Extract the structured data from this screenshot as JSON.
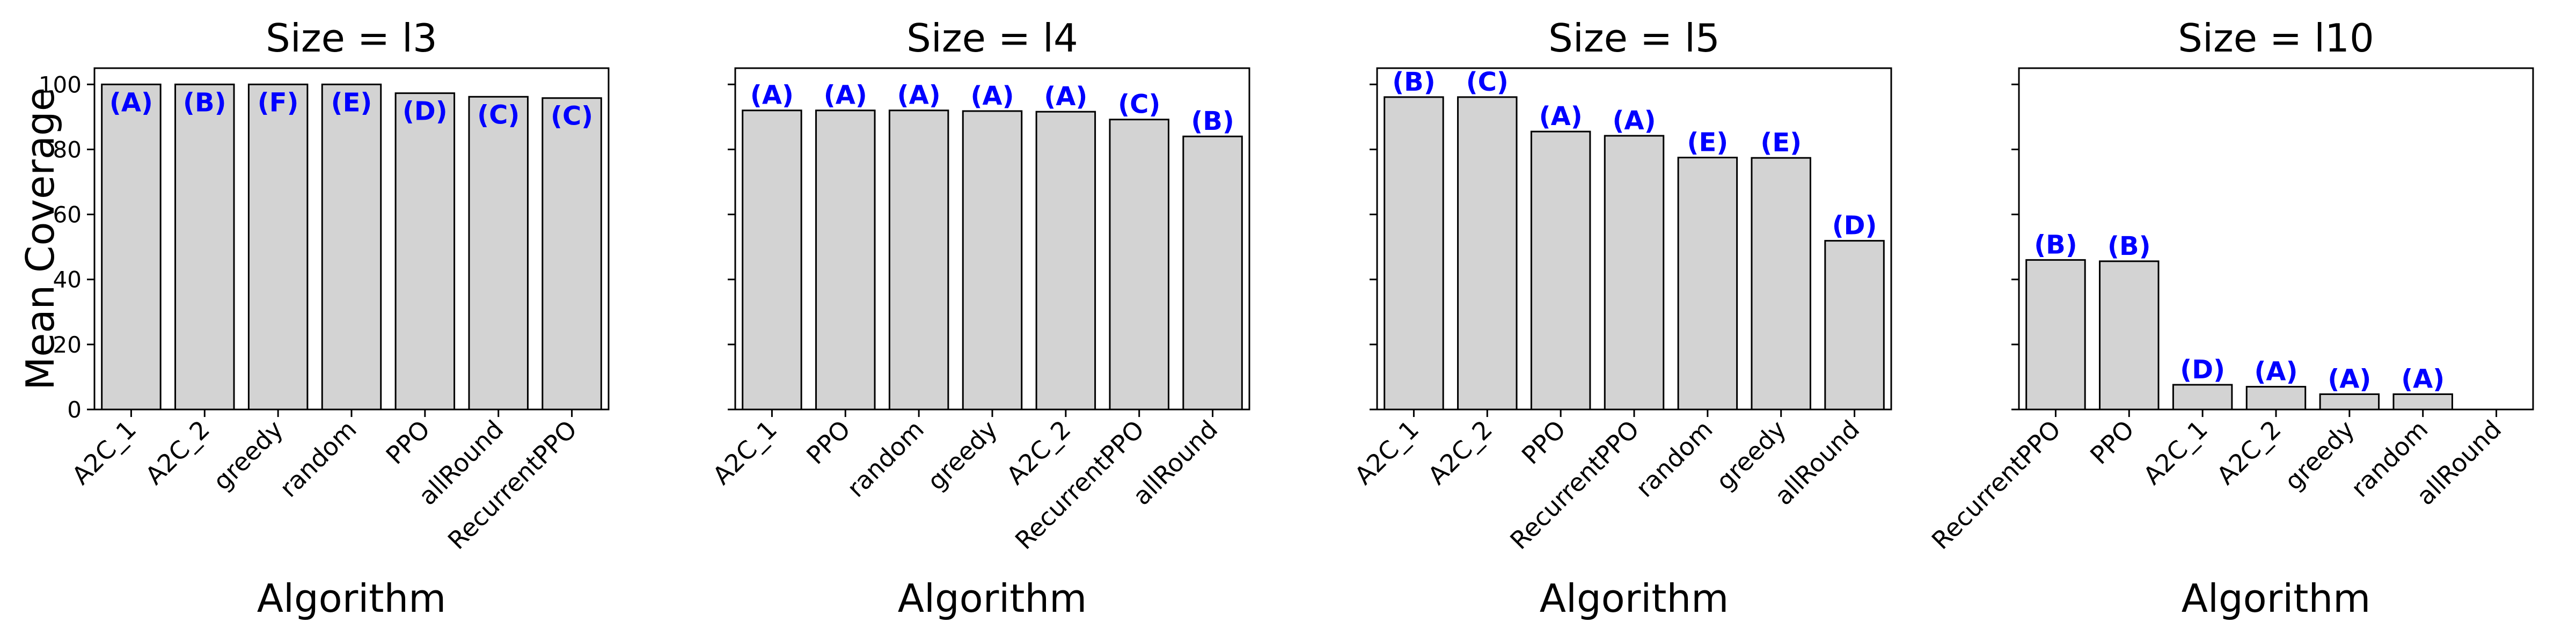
{
  "colors": {
    "bar_fill": "#d3d3d3",
    "bar_edge": "#000000",
    "label": "#0000ff"
  },
  "shared_ylabel": "Mean Coverage",
  "chart_data": [
    {
      "type": "bar",
      "title": "Size = l3",
      "xlabel": "Algorithm",
      "ylabel": "Mean Coverage",
      "ylim": [
        0,
        105
      ],
      "yticks": [
        0,
        20,
        40,
        60,
        80,
        100
      ],
      "categories": [
        "A2C_1",
        "A2C_2",
        "greedy",
        "random",
        "PPO",
        "allRound",
        "RecurrentPPO"
      ],
      "values": [
        100,
        100,
        100,
        100,
        97.3,
        96.2,
        95.8
      ],
      "labels": [
        "(A)",
        "(B)",
        "(F)",
        "(E)",
        "(D)",
        "(C)",
        "(C)"
      ],
      "label_inside": true
    },
    {
      "type": "bar",
      "title": "Size = l4",
      "xlabel": "Algorithm",
      "ylim": [
        0,
        105
      ],
      "yticks": [
        0,
        20,
        40,
        60,
        80,
        100
      ],
      "categories": [
        "A2C_1",
        "PPO",
        "random",
        "greedy",
        "A2C_2",
        "RecurrentPPO",
        "allRound"
      ],
      "values": [
        92,
        92,
        92,
        91.8,
        91.6,
        89.2,
        84
      ],
      "labels": [
        "(A)",
        "(A)",
        "(A)",
        "(A)",
        "(A)",
        "(C)",
        "(B)"
      ],
      "label_inside": false
    },
    {
      "type": "bar",
      "title": "Size = l5",
      "xlabel": "Algorithm",
      "ylim": [
        0,
        105
      ],
      "yticks": [
        0,
        20,
        40,
        60,
        80,
        100
      ],
      "categories": [
        "A2C_1",
        "A2C_2",
        "PPO",
        "RecurrentPPO",
        "random",
        "greedy",
        "allRound"
      ],
      "values": [
        96.1,
        96.1,
        85.5,
        84.2,
        77.5,
        77.4,
        51.9
      ],
      "labels": [
        "(B)",
        "(C)",
        "(A)",
        "(A)",
        "(E)",
        "(E)",
        "(D)"
      ],
      "label_inside": false
    },
    {
      "type": "bar",
      "title": "Size = l10",
      "xlabel": "Algorithm",
      "ylim": [
        0,
        105
      ],
      "yticks": [
        0,
        20,
        40,
        60,
        80,
        100
      ],
      "categories": [
        "RecurrentPPO",
        "PPO",
        "A2C_1",
        "A2C_2",
        "greedy",
        "random",
        "allRound"
      ],
      "values": [
        46,
        45.6,
        7.6,
        7.0,
        4.7,
        4.7,
        0
      ],
      "labels": [
        "(B)",
        "(B)",
        "(D)",
        "(A)",
        "(A)",
        "(A)",
        ""
      ],
      "label_inside": false
    }
  ]
}
